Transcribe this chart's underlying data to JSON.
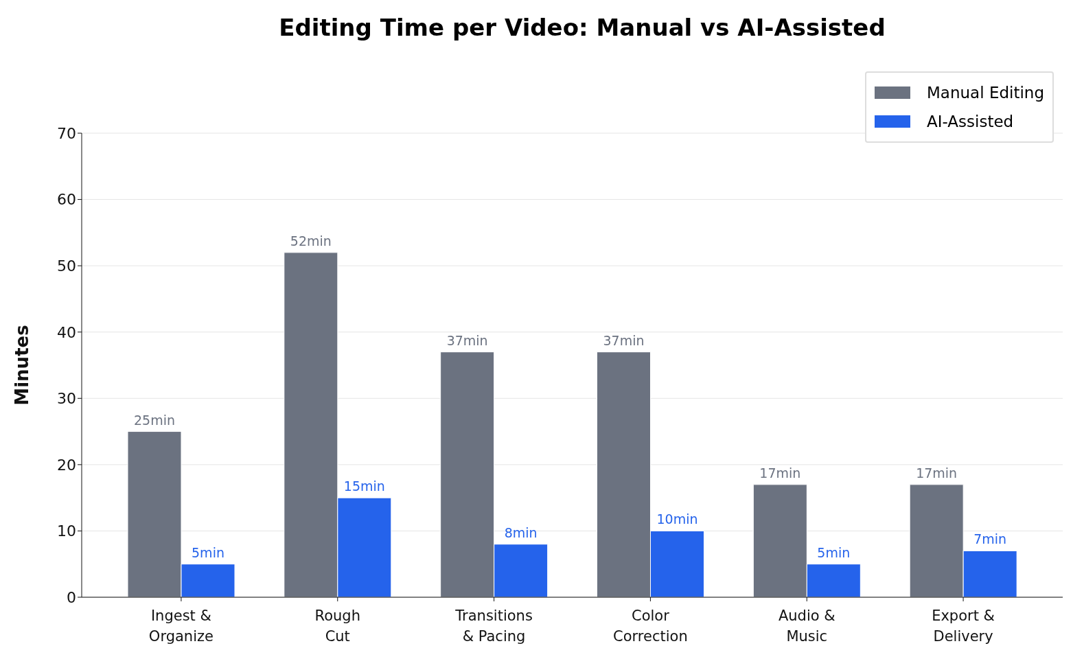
{
  "chart_data": {
    "type": "bar",
    "title": "Editing Time per Video: Manual vs AI-Assisted",
    "ylabel": "Minutes",
    "categories": [
      "Ingest &\nOrganize",
      "Rough\nCut",
      "Transitions\n& Pacing",
      "Color\nCorrection",
      "Audio &\nMusic",
      "Export &\nDelivery"
    ],
    "series": [
      {
        "name": "Manual Editing",
        "color": "#6b7280",
        "values": [
          25,
          52,
          37,
          37,
          17,
          17
        ],
        "value_labels": [
          "25min",
          "52min",
          "37min",
          "37min",
          "17min",
          "17min"
        ]
      },
      {
        "name": "AI-Assisted",
        "color": "#2563eb",
        "values": [
          5,
          15,
          8,
          10,
          5,
          7
        ],
        "value_labels": [
          "5min",
          "15min",
          "8min",
          "10min",
          "5min",
          "7min"
        ]
      }
    ],
    "ylim": [
      0,
      70
    ],
    "yticks": [
      0,
      10,
      20,
      30,
      40,
      50,
      60,
      70
    ],
    "grid": "y",
    "legend": "top right"
  }
}
